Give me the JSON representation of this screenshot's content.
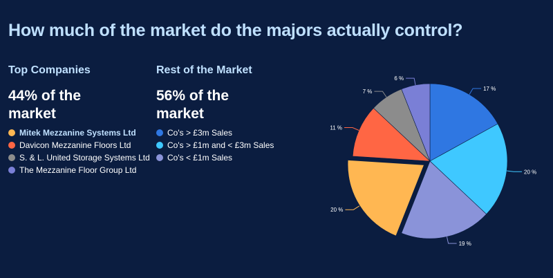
{
  "title": "How much of the market do the majors actually control?",
  "top_companies": {
    "heading": "Top Companies",
    "share_line1": "44% of the",
    "share_line2": "market",
    "items": [
      {
        "label": "Mitek Mezzanine Systems Ltd",
        "color": "#ffb752",
        "highlight": true
      },
      {
        "label": "Davicon Mezzanine Floors Ltd",
        "color": "#ff6644",
        "highlight": false
      },
      {
        "label": "S. & L. United Storage Systems Ltd",
        "color": "#8c8c8c",
        "highlight": false
      },
      {
        "label": "The Mezzanine Floor Group Ltd",
        "color": "#7a7fd6",
        "highlight": false
      }
    ]
  },
  "rest_of_market": {
    "heading": "Rest of the Market",
    "share_line1": "56% of the",
    "share_line2": "market",
    "items": [
      {
        "label": "Co's > £3m Sales",
        "color": "#2f77e2"
      },
      {
        "label": "Co's > £1m and < £3m Sales",
        "color": "#3fc8ff"
      },
      {
        "label": "Co's < £1m Sales",
        "color": "#8a93d9"
      }
    ]
  },
  "chart_data": {
    "type": "pie",
    "slices": [
      {
        "label": "Co's > £3m Sales",
        "value": 17,
        "color": "#2f77e2",
        "exploded": false
      },
      {
        "label": "Co's > £1m and < £3m Sales",
        "value": 20,
        "color": "#3fc8ff",
        "exploded": false
      },
      {
        "label": "Co's < £1m Sales",
        "value": 19,
        "color": "#8a93d9",
        "exploded": false
      },
      {
        "label": "Mitek Mezzanine Systems Ltd",
        "value": 20,
        "color": "#ffb752",
        "exploded": true
      },
      {
        "label": "Davicon Mezzanine Floors Ltd",
        "value": 11,
        "color": "#ff6644",
        "exploded": false
      },
      {
        "label": "S. & L. United Storage Systems Ltd",
        "value": 7,
        "color": "#8c8c8c",
        "exploded": false
      },
      {
        "label": "The Mezzanine Floor Group Ltd",
        "value": 6,
        "color": "#7a7fd6",
        "exploded": false
      }
    ],
    "data_labels": [
      "17 %",
      "20 %",
      "19 %",
      "20 %",
      "11 %",
      "7 %",
      "6 %"
    ],
    "start_direction": "top, clockwise"
  }
}
